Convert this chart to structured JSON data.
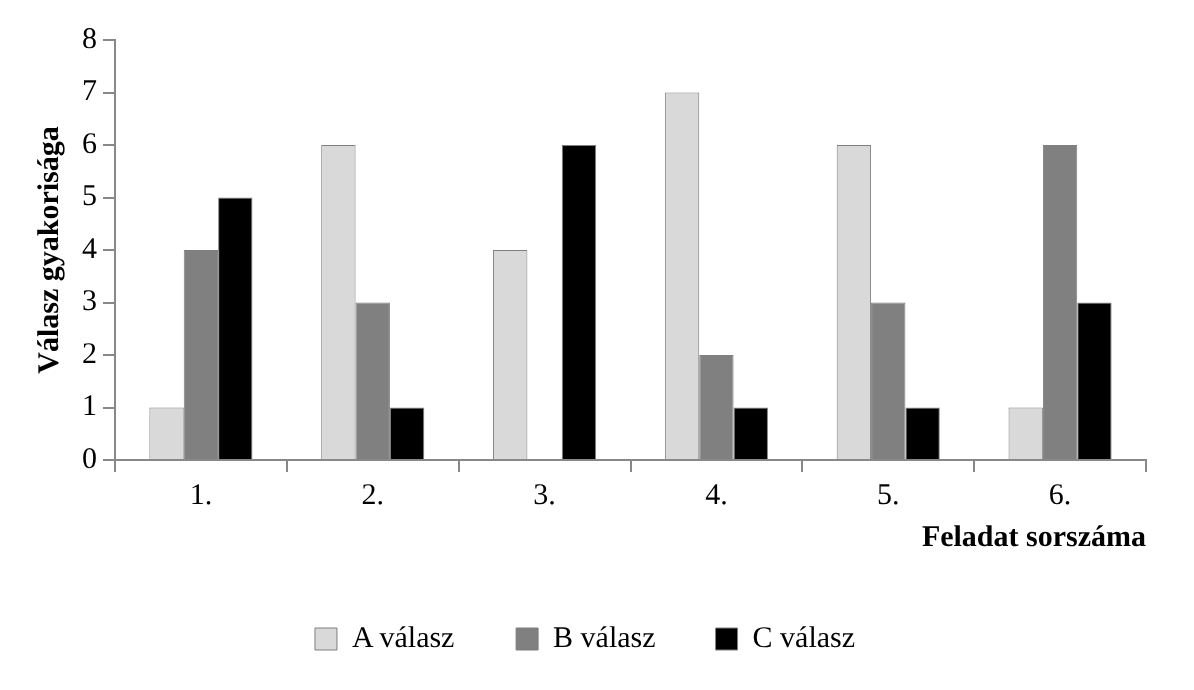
{
  "chart_data": {
    "type": "bar",
    "xlabel": "Feladat sorszáma",
    "ylabel": "Válasz gyakorisága",
    "categories": [
      "1.",
      "2.",
      "3.",
      "4.",
      "5.",
      "6."
    ],
    "series": [
      {
        "name": "A válasz",
        "color": "#d9d9d9",
        "values": [
          1,
          6,
          4,
          7,
          6,
          1
        ]
      },
      {
        "name": "B válasz",
        "color": "#808080",
        "values": [
          4,
          3,
          0,
          2,
          3,
          6
        ]
      },
      {
        "name": "C válasz",
        "color": "#000000",
        "values": [
          5,
          1,
          6,
          1,
          1,
          3
        ]
      }
    ],
    "ylim": [
      0,
      8
    ],
    "yticks": [
      0,
      1,
      2,
      3,
      4,
      5,
      6,
      7,
      8
    ],
    "grid": false,
    "legend": "bottom"
  }
}
